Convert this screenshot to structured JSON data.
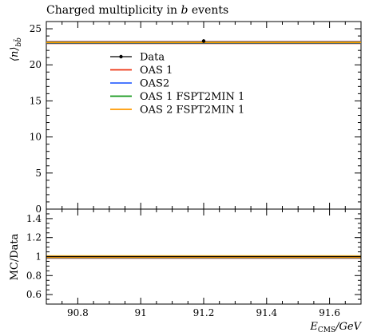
{
  "chart_data": [
    {
      "type": "line",
      "title": "Charged multiplicity in b events",
      "title_prefix": "Charged multiplicity in ",
      "title_italic": "b",
      "title_suffix": " events",
      "ylabel": "⟨n⟩_{bb̄}",
      "ylabel_main": "⟨n⟩",
      "ylabel_sub": "bb̄",
      "xlim": [
        90.7,
        91.7
      ],
      "ylim": [
        0,
        26
      ],
      "yticks": [
        0,
        5,
        10,
        15,
        20,
        25
      ],
      "yticks_minor": [
        1,
        2,
        3,
        4,
        6,
        7,
        8,
        9,
        11,
        12,
        13,
        14,
        16,
        17,
        18,
        19,
        21,
        22,
        23,
        24,
        26
      ],
      "xticks": [
        90.8,
        91.0,
        91.2,
        91.4,
        91.6
      ],
      "xticks_minor": [
        90.75,
        90.85,
        90.9,
        90.95,
        91.05,
        91.1,
        91.15,
        91.25,
        91.3,
        91.35,
        91.45,
        91.5,
        91.55,
        91.65
      ],
      "legend_position": "upper-left",
      "series": [
        {
          "name": "Data",
          "kind": "points",
          "color": "#000000",
          "x": [
            91.2
          ],
          "y": [
            23.3
          ],
          "yerr": [
            0.25
          ]
        },
        {
          "name": "OAS 1",
          "kind": "line",
          "color": "#ee3311",
          "x": [
            90.7,
            91.7
          ],
          "y": [
            23.1,
            23.1
          ]
        },
        {
          "name": "OAS2",
          "kind": "line",
          "color": "#3366ff",
          "x": [
            90.7,
            91.7
          ],
          "y": [
            23.1,
            23.1
          ]
        },
        {
          "name": "OAS 1 FSPT2MIN 1",
          "kind": "line",
          "color": "#109618",
          "x": [
            90.7,
            91.7
          ],
          "y": [
            23.1,
            23.1
          ]
        },
        {
          "name": "OAS 2 FSPT2MIN 1",
          "kind": "line",
          "color": "#ff9900",
          "x": [
            90.7,
            91.7
          ],
          "y": [
            23.1,
            23.1
          ]
        }
      ]
    },
    {
      "type": "line",
      "ylabel": "MC/Data",
      "xlabel": "E_CMS / GeV",
      "xlabel_main": "E",
      "xlabel_sub": "CMS",
      "xlabel_unit": "/GeV",
      "xlim": [
        90.7,
        91.7
      ],
      "ylim": [
        0.5,
        1.5
      ],
      "yticks": [
        0.6,
        0.8,
        1.0,
        1.2,
        1.4
      ],
      "ytick_labels": [
        "0.6",
        "0.8",
        "1",
        "1.2",
        "1.4"
      ],
      "yticks_minor": [
        0.55,
        0.65,
        0.7,
        0.75,
        0.85,
        0.9,
        0.95,
        1.05,
        1.1,
        1.15,
        1.25,
        1.3,
        1.35,
        1.45
      ],
      "xticks": [
        90.8,
        91.0,
        91.2,
        91.4,
        91.6
      ],
      "xtick_labels": [
        "90.8",
        "91",
        "91.2",
        "91.4",
        "91.6"
      ],
      "xticks_minor": [
        90.75,
        90.85,
        90.9,
        90.95,
        91.05,
        91.1,
        91.15,
        91.25,
        91.3,
        91.35,
        91.45,
        91.5,
        91.55,
        91.65
      ],
      "band": {
        "y": [
          0.985,
          1.015
        ],
        "color": "#f3e44a"
      },
      "series": [
        {
          "name": "OAS 1",
          "color": "#ee3311",
          "x": [
            90.7,
            91.7
          ],
          "y": [
            0.992,
            0.992
          ]
        },
        {
          "name": "OAS2",
          "color": "#3366ff",
          "x": [
            90.7,
            91.7
          ],
          "y": [
            0.992,
            0.992
          ]
        },
        {
          "name": "OAS 1 FSPT2MIN 1",
          "color": "#109618",
          "x": [
            90.7,
            91.7
          ],
          "y": [
            0.992,
            0.992
          ]
        },
        {
          "name": "OAS 2 FSPT2MIN 1",
          "color": "#ff9900",
          "x": [
            90.7,
            91.7
          ],
          "y": [
            0.992,
            0.992
          ]
        },
        {
          "name": "Data",
          "color": "#000000",
          "x": [
            90.7,
            91.7
          ],
          "y": [
            1.0,
            1.0
          ]
        }
      ]
    }
  ]
}
